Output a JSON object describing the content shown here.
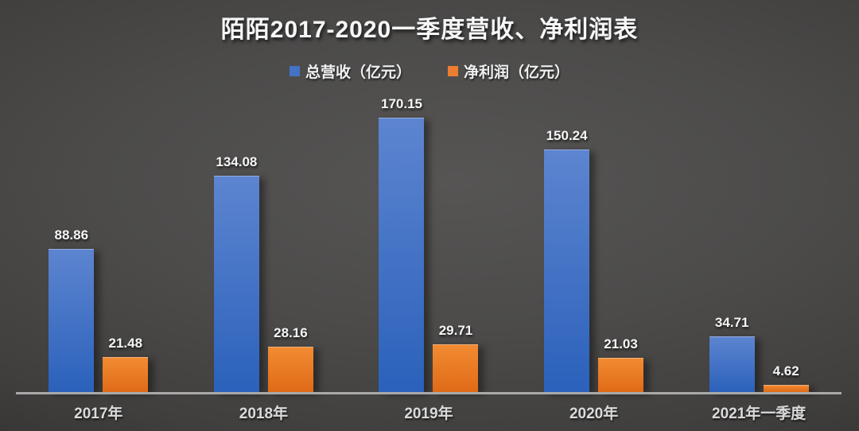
{
  "title": "陌陌2017-2020一季度营收、净利润表",
  "chart_data": {
    "type": "bar",
    "title": "陌陌2017-2020一季度营收、净利润表",
    "categories": [
      "2017年",
      "2018年",
      "2019年",
      "2020年",
      "2021年一季度"
    ],
    "series": [
      {
        "name": "总营收（亿元）",
        "values": [
          88.86,
          134.08,
          170.15,
          150.24,
          34.71
        ],
        "legend_color": "#4472c4",
        "color_top": "#5d85d0",
        "color_bottom": "#2b61bb"
      },
      {
        "name": "净利润（亿元）",
        "values": [
          21.48,
          28.16,
          29.71,
          21.03,
          4.62
        ],
        "legend_color": "#ed7d31",
        "color_top": "#f28c33",
        "color_bottom": "#e06a17"
      }
    ],
    "ylim": [
      0,
      180
    ],
    "grid": false,
    "legend_position": "top",
    "value_labels": true,
    "value_label_decimals": 2,
    "axis_line_color": "#a9a9a9",
    "background_center_color": "#4c4b4a",
    "background_edge_color": "#1d1d1d",
    "text_color": "#f5f5f5"
  }
}
